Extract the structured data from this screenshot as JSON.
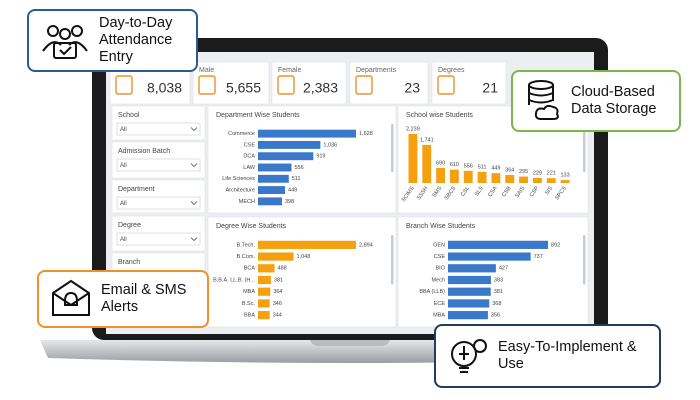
{
  "callouts": [
    "Day-to-Day Attendance Entry",
    "Cloud-Based Data Storage",
    "Email & SMS Alerts",
    "Easy-To-Implement & Use"
  ],
  "kpis": [
    {
      "value": "8,038"
    },
    {
      "label": "Male",
      "value": "5,655"
    },
    {
      "label": "Female",
      "value": "2,383"
    },
    {
      "label": "Departments",
      "value": "23"
    },
    {
      "label": "Degrees",
      "value": "21"
    }
  ],
  "filters": [
    {
      "label": "School",
      "value": "All"
    },
    {
      "label": "Admission Batch",
      "value": "All"
    },
    {
      "label": "Department",
      "value": "All"
    },
    {
      "label": "Degree",
      "value": "All"
    },
    {
      "label": "Branch"
    }
  ],
  "charts": [
    {
      "type": "hbar",
      "title": "Department Wise Students",
      "color": "#3a78c9",
      "categories": [
        "Commerce",
        "CSE",
        "DCA",
        "LAW",
        "Life Sciences",
        "Architecture",
        "MECH"
      ],
      "values": [
        1628,
        1036,
        919,
        556,
        511,
        449,
        398
      ],
      "value_labels": [
        "1,628",
        "1,036",
        "919",
        "556",
        "511",
        "449",
        "398"
      ]
    },
    {
      "type": "vbar",
      "title": "School wise Students",
      "color": "#f5a00f",
      "categories": [
        "SCIMS",
        "SSSH",
        "SMS",
        "SBCS",
        "CSL",
        "SLS",
        "CSA",
        "CSB",
        "SAIS",
        "CSP",
        "SIS",
        "SPCS"
      ],
      "values": [
        2239,
        1741,
        690,
        610,
        556,
        511,
        449,
        364,
        295,
        229,
        221,
        133
      ],
      "value_labels": [
        "2,239",
        "1,741",
        "690",
        "610",
        "556",
        "511",
        "449",
        "364",
        "295",
        "229",
        "221",
        "133"
      ]
    },
    {
      "type": "hbar",
      "title": "Degree Wise Students",
      "color": "#f5a00f",
      "categories": [
        "B.Tech.",
        "B.Com.",
        "BCA",
        "B.B.A. LL.B. (H...",
        "MBA",
        "B.Sc.",
        "BBA"
      ],
      "values": [
        2894,
        1048,
        488,
        381,
        364,
        346,
        344
      ],
      "value_labels": [
        "2,894",
        "1,048",
        "488",
        "381",
        "364",
        "346",
        "344"
      ]
    },
    {
      "type": "hbar",
      "title": "Branch Wise Students",
      "color": "#3a78c9",
      "categories": [
        "GEN",
        "CSE",
        "BIO",
        "Mech",
        "BBA (LLB)",
        "ECE",
        "MBA"
      ],
      "values": [
        892,
        737,
        427,
        383,
        381,
        368,
        356
      ]
    }
  ]
}
